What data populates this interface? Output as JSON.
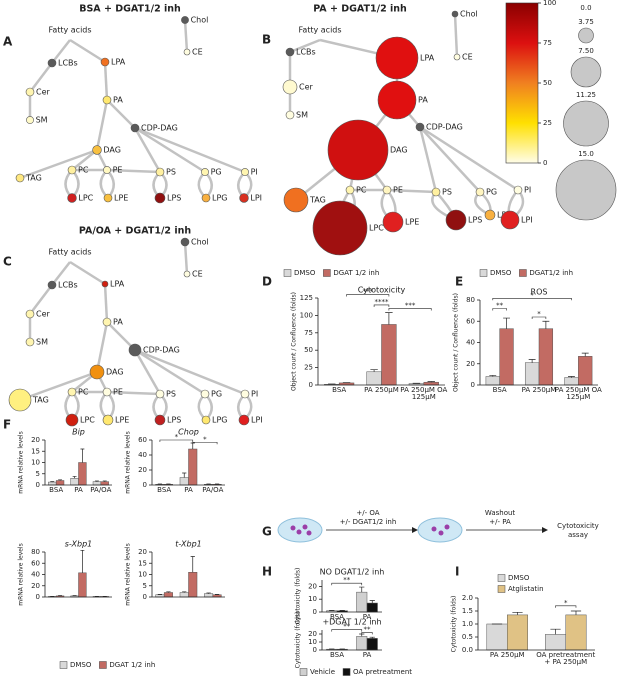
{
  "panel_labels": [
    "A",
    "B",
    "C",
    "D",
    "E",
    "F",
    "G",
    "H",
    "I"
  ],
  "networks": [
    {
      "title": "BSA + DGAT1/2 inh",
      "nodes": [
        {
          "label": "Fatty acids"
        },
        {
          "label": "Chol",
          "size": 1.8,
          "color": "#5a5a5a"
        },
        {
          "label": "CE",
          "size": 1.5,
          "color": "#fffde0"
        },
        {
          "label": "LCBs",
          "size": 2,
          "color": "#5a5a5a"
        },
        {
          "label": "LPA",
          "size": 2,
          "color": "#f07020"
        },
        {
          "label": "Cer",
          "size": 2,
          "color": "#fff5b0"
        },
        {
          "label": "SM",
          "size": 1.8,
          "color": "#fffac8"
        },
        {
          "label": "PA",
          "size": 2,
          "color": "#ffe870"
        },
        {
          "label": "CDP-DAG",
          "size": 2,
          "color": "#5a5a5a"
        },
        {
          "label": "DAG",
          "size": 2.2,
          "color": "#f8c040"
        },
        {
          "label": "TAG",
          "size": 2,
          "color": "#ffe880"
        },
        {
          "label": "PC",
          "size": 2,
          "color": "#fff0a0"
        },
        {
          "label": "PE",
          "size": 1.8,
          "color": "#fff8c0"
        },
        {
          "label": "PS",
          "size": 2,
          "color": "#fff0a0"
        },
        {
          "label": "PG",
          "size": 1.8,
          "color": "#fff5b0"
        },
        {
          "label": "PI",
          "size": 1.8,
          "color": "#fff5b0"
        },
        {
          "label": "LPC",
          "size": 2.2,
          "color": "#d02020"
        },
        {
          "label": "LPE",
          "size": 2,
          "color": "#f8c040"
        },
        {
          "label": "LPS",
          "size": 2.5,
          "color": "#901010"
        },
        {
          "label": "LPG",
          "size": 2,
          "color": "#f8b040"
        },
        {
          "label": "LPI",
          "size": 2.2,
          "color": "#d83020"
        }
      ]
    },
    {
      "title": "PA + DGAT1/2 inh",
      "nodes": [
        {
          "label": "Fatty acids"
        },
        {
          "label": "Chol",
          "size": 1.5,
          "color": "#5a5a5a"
        },
        {
          "label": "CE",
          "size": 1.5,
          "color": "#fffde0"
        },
        {
          "label": "LCBs",
          "size": 2,
          "color": "#5a5a5a"
        },
        {
          "label": "LPA",
          "size": 10.5,
          "color": "#e01010"
        },
        {
          "label": "Cer",
          "size": 3.5,
          "color": "#fffad0"
        },
        {
          "label": "SM",
          "size": 2,
          "color": "#fffde0"
        },
        {
          "label": "PA",
          "size": 9.5,
          "color": "#e01010"
        },
        {
          "label": "CDP-DAG",
          "size": 2,
          "color": "#5a5a5a"
        },
        {
          "label": "DAG",
          "size": 15,
          "color": "#d01010"
        },
        {
          "label": "TAG",
          "size": 6,
          "color": "#f07020"
        },
        {
          "label": "PC",
          "size": 2,
          "color": "#fff5b0"
        },
        {
          "label": "PE",
          "size": 2,
          "color": "#fff5c0"
        },
        {
          "label": "PS",
          "size": 2,
          "color": "#fff0a0"
        },
        {
          "label": "PG",
          "size": 2,
          "color": "#fff5c0"
        },
        {
          "label": "PI",
          "size": 2,
          "color": "#fffde0"
        },
        {
          "label": "LPC",
          "size": 13.5,
          "color": "#a01010"
        },
        {
          "label": "LPE",
          "size": 5,
          "color": "#e02020"
        },
        {
          "label": "LPS",
          "size": 5,
          "color": "#901010"
        },
        {
          "label": "LPG",
          "size": 2.5,
          "color": "#f8b040"
        },
        {
          "label": "LPI",
          "size": 4.5,
          "color": "#e02020"
        }
      ]
    },
    {
      "title": "PA/OA + DGAT1/2 inh",
      "nodes": [
        {
          "label": "Fatty acids"
        },
        {
          "label": "Chol",
          "size": 2,
          "color": "#5a5a5a"
        },
        {
          "label": "CE",
          "size": 1.5,
          "color": "#fffde0"
        },
        {
          "label": "LCBs",
          "size": 2,
          "color": "#5a5a5a"
        },
        {
          "label": "LPA",
          "size": 1.5,
          "color": "#d02010"
        },
        {
          "label": "Cer",
          "size": 2,
          "color": "#fff5b0"
        },
        {
          "label": "SM",
          "size": 2,
          "color": "#fff5b0"
        },
        {
          "label": "PA",
          "size": 2,
          "color": "#fff5b0"
        },
        {
          "label": "CDP-DAG",
          "size": 3,
          "color": "#5a5a5a"
        },
        {
          "label": "DAG",
          "size": 3.5,
          "color": "#f09010"
        },
        {
          "label": "TAG",
          "size": 5.5,
          "color": "#fff080"
        },
        {
          "label": "PC",
          "size": 2,
          "color": "#fff5b0"
        },
        {
          "label": "PE",
          "size": 2,
          "color": "#fffde0"
        },
        {
          "label": "PS",
          "size": 2,
          "color": "#fffde0"
        },
        {
          "label": "PG",
          "size": 2,
          "color": "#fffde0"
        },
        {
          "label": "PI",
          "size": 2,
          "color": "#fffde0"
        },
        {
          "label": "LPC",
          "size": 3,
          "color": "#d02010"
        },
        {
          "label": "LPE",
          "size": 2.5,
          "color": "#ffe870"
        },
        {
          "label": "LPS",
          "size": 2.5,
          "color": "#c02020"
        },
        {
          "label": "LPG",
          "size": 2,
          "color": "#ffe870"
        },
        {
          "label": "LPI",
          "size": 2.5,
          "color": "#e02020"
        }
      ]
    }
  ],
  "color_scale": {
    "ylim": [
      0,
      100
    ],
    "yticks": [
      0,
      25,
      50,
      75,
      100
    ],
    "colors": [
      "#fffde8",
      "#ffe000",
      "#f08020",
      "#dc1010",
      "#8b0000"
    ]
  },
  "size_scale": {
    "values": [
      {
        "value": 0,
        "label": "0.0"
      },
      3.75,
      {
        "value": 7.5,
        "label": "7.50"
      },
      11.25,
      {
        "value": 15,
        "label": "15.0"
      }
    ]
  },
  "schematic": {
    "step1": [
      "+/- OA",
      "+/- DGAT1/2 inh"
    ],
    "step2": [
      "Washout",
      "+/- PA"
    ],
    "result": [
      "Cytotoxicity",
      "assay"
    ]
  },
  "chart_data": [
    {
      "type": "bar",
      "title": "Cytotoxicity",
      "ylabel": "Object count / Confluence (folds)",
      "categories": [
        "BSA",
        "PA 250µM",
        "PA 250µM OA 125µM"
      ],
      "series": [
        {
          "name": "DMSO",
          "color": "#d9d9d9",
          "values": [
            1,
            19,
            2
          ],
          "errors": [
            0.5,
            3,
            0.5
          ]
        },
        {
          "name": "DGAT 1/2 inh",
          "color": "#c26b63",
          "values": [
            3,
            87,
            4
          ],
          "errors": [
            0.5,
            17,
            1
          ]
        }
      ],
      "ylim": [
        0,
        125
      ],
      "yticks": [
        0,
        25,
        50,
        75,
        100,
        125
      ],
      "annotations": [
        "***",
        "****",
        "***"
      ]
    },
    {
      "type": "bar",
      "title": "ROS",
      "ylabel": "Object count / Confluence (folds)",
      "categories": [
        "BSA",
        "PA 250µM",
        "PA 250µM OA 125µM"
      ],
      "series": [
        {
          "name": "DMSO",
          "color": "#d9d9d9",
          "values": [
            8,
            21,
            7
          ],
          "errors": [
            1,
            3,
            1
          ]
        },
        {
          "name": "DGAT1/2 inh",
          "color": "#c26b63",
          "values": [
            53,
            53,
            27
          ],
          "errors": [
            10,
            7,
            3
          ]
        }
      ],
      "ylim": [
        0,
        80
      ],
      "yticks": [
        0,
        20,
        40,
        60,
        80
      ],
      "annotations": [
        "**",
        "*",
        "*"
      ]
    },
    {
      "type": "bar",
      "title": "Bip",
      "ylabel": "mRNA relative levels",
      "categories": [
        "BSA",
        "PA",
        "PA/OA"
      ],
      "series": [
        {
          "name": "DMSO",
          "color": "#d9d9d9",
          "values": [
            1.3,
            3,
            1.5
          ],
          "errors": [
            0.2,
            0.8,
            0.3
          ]
        },
        {
          "name": "DGAT 1/2 inh",
          "color": "#c26b63",
          "values": [
            2,
            10,
            1.5
          ],
          "errors": [
            0.3,
            6,
            0.3
          ]
        }
      ],
      "ylim": [
        0,
        20
      ],
      "yticks": [
        0,
        5,
        10,
        15,
        20
      ]
    },
    {
      "type": "bar",
      "title": "Chop",
      "ylabel": "mRNA relative levels",
      "categories": [
        "BSA",
        "PA",
        "PA/OA"
      ],
      "series": [
        {
          "color": "#d9d9d9",
          "values": [
            1,
            10,
            1
          ],
          "errors": [
            0.3,
            6,
            0.3
          ]
        },
        {
          "color": "#c26b63",
          "values": [
            1,
            48,
            1
          ],
          "errors": [
            0.3,
            8,
            0.3
          ]
        }
      ],
      "ylim": [
        0,
        60
      ],
      "yticks": [
        0,
        20,
        40,
        60
      ],
      "annotations": [
        "*",
        "*"
      ]
    },
    {
      "type": "bar",
      "title": "s-Xbp1",
      "ylabel": "mRNA relative levels",
      "series": [
        {
          "color": "#d9d9d9",
          "values": [
            1,
            2,
            1
          ],
          "errors": [
            0.2,
            0.5,
            0.2
          ]
        },
        {
          "color": "#c26b63",
          "values": [
            2,
            43,
            1
          ],
          "errors": [
            0.5,
            40,
            0.2
          ]
        }
      ],
      "ylim": [
        0,
        80
      ],
      "yticks": [
        0,
        20,
        40,
        60,
        80
      ]
    },
    {
      "type": "bar",
      "title": "t-Xbp1",
      "ylabel": "mRNA relative levels",
      "series": [
        {
          "color": "#d9d9d9",
          "values": [
            1,
            2,
            1.5
          ],
          "errors": [
            0.2,
            0.3,
            0.3
          ]
        },
        {
          "color": "#c26b63",
          "values": [
            2,
            11,
            1
          ],
          "errors": [
            0.3,
            7,
            0.2
          ]
        }
      ],
      "ylim": [
        0,
        20
      ],
      "yticks": [
        0,
        5,
        10,
        15,
        20
      ]
    },
    {
      "type": "bar",
      "title": "NO DGAT1/2 inh",
      "ylabel": "Cytotoxicity (folds)",
      "categories": [
        "BSA",
        "PA"
      ],
      "series": [
        {
          "color": "#d0d0d0",
          "values": [
            1,
            15.5
          ],
          "errors": [
            0.3,
            4
          ]
        },
        {
          "color": "#111111",
          "values": [
            1,
            7
          ],
          "errors": [
            0.3,
            2
          ]
        }
      ],
      "ylim": [
        0,
        25
      ],
      "yticks": [
        0,
        10,
        20
      ],
      "annotations": [
        "**"
      ]
    },
    {
      "type": "bar",
      "title": "+DGAT 1/2 inh",
      "ylabel": "Cytotoxicity (folds)",
      "categories": [
        "BSA",
        "PA"
      ],
      "series": [
        {
          "name": "Vehicle",
          "color": "#d0d0d0",
          "values": [
            1,
            17
          ],
          "errors": [
            0.3,
            3
          ]
        },
        {
          "name": "OA pretreatment",
          "color": "#111111",
          "values": [
            1,
            14.5
          ],
          "errors": [
            0.3,
            1.5
          ]
        }
      ],
      "ylim": [
        0,
        25
      ],
      "yticks": [
        0,
        10,
        20
      ],
      "annotations": [
        "**",
        "**"
      ]
    },
    {
      "type": "bar",
      "ylabel": "Cytotoxicity (folds)",
      "categories": [
        "PA 250µM",
        "OA pretreatment + PA 250µM"
      ],
      "series": [
        {
          "name": "DMSO",
          "color": "#d9d9d9",
          "values": [
            1.0,
            0.6
          ],
          "errors": [
            0,
            0.2
          ]
        },
        {
          "name": "Atglistatin",
          "color": "#e0c285",
          "values": [
            1.35,
            1.35
          ],
          "errors": [
            0.1,
            0.15
          ]
        }
      ],
      "ylim": [
        0,
        2
      ],
      "yticks": [
        {
          "value": 0,
          "label": "0.0"
        },
        0.5,
        {
          "value": 1,
          "label": "1.0"
        },
        1.5,
        {
          "value": 2,
          "label": "2.0"
        }
      ],
      "annotations": [
        "*"
      ]
    }
  ]
}
